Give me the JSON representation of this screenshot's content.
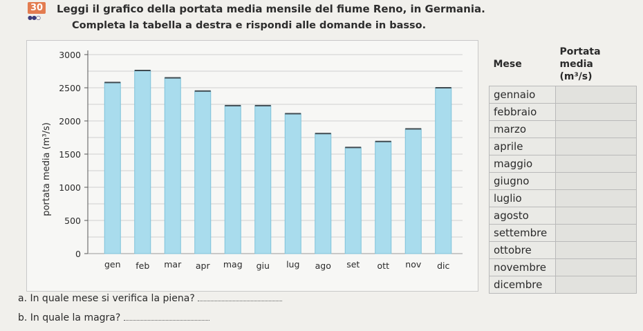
{
  "exercise": {
    "number": "30",
    "difficulty": "●●○",
    "instruction_1": "Leggi il grafico della portata media mensile del fiume Reno, in Germania.",
    "instruction_2": "Completa la tabella a destra e rispondi alle domande in basso."
  },
  "chart_data": {
    "type": "bar",
    "ylabel": "portata media (m³/s)",
    "ylim": [
      0,
      3000
    ],
    "yticks": [
      0,
      500,
      1000,
      1500,
      2000,
      2500,
      3000
    ],
    "categories": [
      "gen",
      "feb",
      "mar",
      "apr",
      "mag",
      "giu",
      "lug",
      "ago",
      "set",
      "ott",
      "nov",
      "dic"
    ],
    "values": [
      2580,
      2760,
      2650,
      2450,
      2230,
      2230,
      2110,
      1810,
      1600,
      1690,
      1880,
      2500
    ],
    "grid": true,
    "colors": {
      "bar": "#a9dced",
      "bar_edge": "#7fc2d9",
      "bar_top": "#3f4a50"
    }
  },
  "table": {
    "header_month": "Mese",
    "header_flow_1": "Portata media",
    "header_flow_2": "(m³/s)",
    "months": [
      "gennaio",
      "febbraio",
      "marzo",
      "aprile",
      "maggio",
      "giugno",
      "luglio",
      "agosto",
      "settembre",
      "ottobre",
      "novembre",
      "dicembre"
    ]
  },
  "questions": {
    "a": "a.  In quale mese si verifica la piena?",
    "b": "b.  In quale la magra?"
  }
}
